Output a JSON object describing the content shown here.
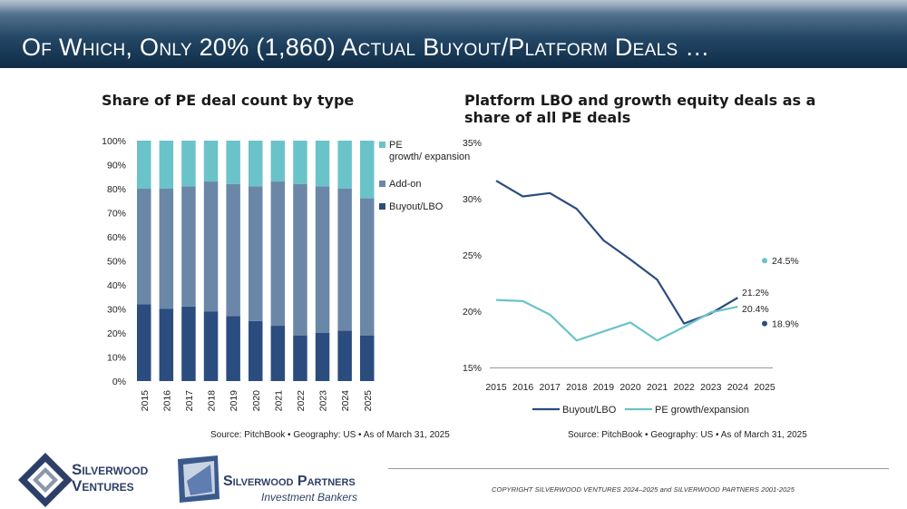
{
  "slide": {
    "title": "Of Which, Only 20% (1,860) Actual Buyout/Platform Deals …",
    "copyright": "COPYRIGHT SILVERWOOD VENTURES 2024–2025 and SILVERWOOD PARTNERS 2001-2025"
  },
  "logos": {
    "ventures_line1": "Silverwood",
    "ventures_line2": "Ventures",
    "partners_name": "Silverwood Partners",
    "partners_tagline": "Investment Bankers"
  },
  "colors": {
    "buyout": "#2b4c7e",
    "addon": "#6b87a8",
    "growth": "#6bc3ca",
    "banner": "#17395a"
  },
  "chart_data": [
    {
      "type": "bar",
      "stacked": true,
      "title": "Share of PE deal count by type",
      "categories": [
        "2015",
        "2016",
        "2017",
        "2018",
        "2019",
        "2020",
        "2021",
        "2022",
        "2023",
        "2024",
        "2025"
      ],
      "series": [
        {
          "name": "Buyout/LBO",
          "values": [
            32,
            30,
            31,
            29,
            27,
            25,
            23,
            19,
            20,
            21,
            19
          ]
        },
        {
          "name": "Add-on",
          "values": [
            48,
            50,
            50,
            54,
            55,
            56,
            60,
            63,
            61,
            59,
            57
          ]
        },
        {
          "name": "PE growth/ expansion",
          "values": [
            20,
            20,
            19,
            17,
            18,
            19,
            17,
            18,
            19,
            20,
            24
          ]
        }
      ],
      "y_ticks": [
        "0%",
        "10%",
        "20%",
        "30%",
        "40%",
        "50%",
        "60%",
        "70%",
        "80%",
        "90%",
        "100%"
      ],
      "ylim": [
        0,
        100
      ],
      "legend": [
        "PE growth/ expansion",
        "Add-on",
        "Buyout/LBO"
      ],
      "source": "Source: PitchBook • Geography: US • As of March 31, 2025"
    },
    {
      "type": "line",
      "title": "Platform LBO and growth equity deals as a share of all PE deals",
      "x": [
        "2015",
        "2016",
        "2017",
        "2018",
        "2019",
        "2020",
        "2021",
        "2022",
        "2023",
        "2024",
        "2025"
      ],
      "series": [
        {
          "name": "Buyout/LBO",
          "values": [
            31.6,
            30.2,
            30.5,
            29.1,
            26.3,
            24.6,
            22.8,
            18.9,
            19.8,
            21.2,
            null
          ],
          "point_2025": 18.9,
          "end_label": "21.2%",
          "point_label": "18.9%"
        },
        {
          "name": "PE growth/expansion",
          "values": [
            21.0,
            20.9,
            19.7,
            17.4,
            18.2,
            19.0,
            17.4,
            18.6,
            19.9,
            20.4,
            null
          ],
          "point_2025": 24.5,
          "end_label": "20.4%",
          "point_label": "24.5%"
        }
      ],
      "y_ticks": [
        "15%",
        "20%",
        "25%",
        "30%",
        "35%"
      ],
      "ylim": [
        15,
        35
      ],
      "legend": [
        "Buyout/LBO",
        "PE growth/expansion"
      ],
      "source": "Source: PitchBook • Geography: US • As of March 31, 2025"
    }
  ]
}
